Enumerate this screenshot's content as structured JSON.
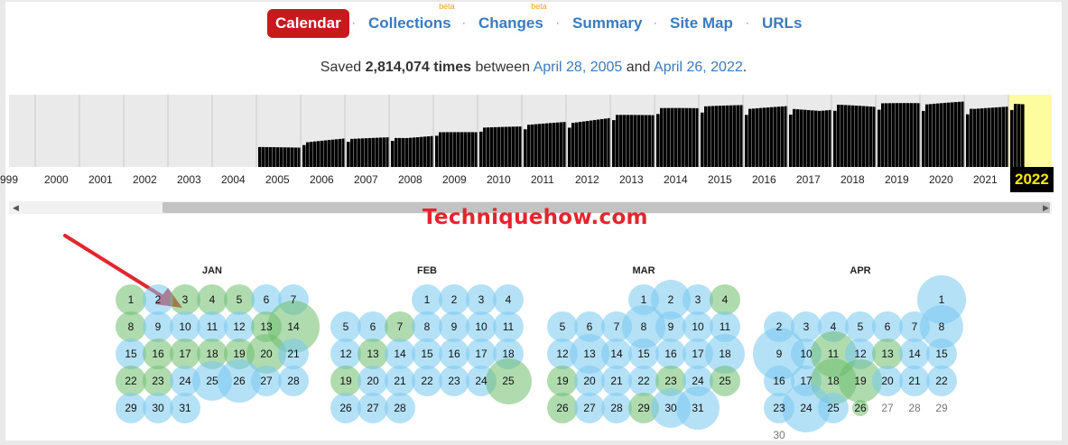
{
  "nav": {
    "items": [
      {
        "label": "Calendar",
        "active": true
      },
      {
        "label": "Collections",
        "sup": "beta"
      },
      {
        "label": "Changes",
        "sup": "beta"
      },
      {
        "label": "Summary"
      },
      {
        "label": "Site Map"
      },
      {
        "label": "URLs"
      }
    ],
    "separator": "·"
  },
  "saved": {
    "prefix": "Saved",
    "count": "2,814,074 times",
    "between": "between",
    "start": "April 28, 2005",
    "and": "and",
    "end": "April 26, 2022",
    "period": "."
  },
  "timeline": {
    "years": [
      "999",
      "2000",
      "2001",
      "2002",
      "2003",
      "2004",
      "2005",
      "2006",
      "2007",
      "2008",
      "2009",
      "2010",
      "2011",
      "2012",
      "2013",
      "2014",
      "2015",
      "2016",
      "2017",
      "2018",
      "2019",
      "2020",
      "2021",
      "2022"
    ],
    "selected_year": "2022",
    "highlight_color": "#fdfda0",
    "bar_color": "#000000",
    "relative_activity": [
      0,
      0,
      0,
      0,
      0,
      0,
      0.28,
      0.4,
      0.42,
      0.47,
      0.52,
      0.57,
      0.63,
      0.72,
      0.8,
      0.84,
      0.86,
      0.87,
      0.88,
      0.88,
      0.89,
      0.92,
      0.9,
      0.92
    ]
  },
  "watermark": "Techniquehow.com",
  "calendar": {
    "months": [
      {
        "name": "JAN",
        "first_weekday": 0,
        "days": 31,
        "green": [
          1,
          3,
          4,
          5,
          8,
          13,
          14,
          16,
          17,
          18,
          19,
          20,
          22,
          23
        ],
        "big": {
          "14": 1.7,
          "25": 1.3,
          "26": 1.4,
          "20": 1.3
        },
        "plain": []
      },
      {
        "name": "FEB",
        "first_weekday": 3,
        "days": 28,
        "green": [
          7,
          13,
          19,
          25
        ],
        "big": {
          "25": 1.5
        },
        "plain": []
      },
      {
        "name": "MAR",
        "first_weekday": 3,
        "days": 31,
        "green": [
          4,
          19,
          23,
          25,
          26,
          29
        ],
        "big": {
          "2": 1.3,
          "8": 1.4,
          "13": 1.3,
          "30": 1.3,
          "31": 1.4,
          "18": 1.3
        },
        "plain": []
      },
      {
        "name": "APR",
        "first_weekday": 6,
        "days": 30,
        "green": [
          11,
          13,
          18,
          19,
          26
        ],
        "big": {
          "1": 1.6,
          "9": 1.7,
          "8": 1.4,
          "11": 1.5,
          "18": 1.5,
          "24": 1.6,
          "19": 1.4
        },
        "plain": [
          27,
          28,
          29,
          30
        ],
        "small": [
          26
        ]
      }
    ]
  },
  "colors": {
    "accent": "#c8191e",
    "link": "#3a7bbf",
    "bubble_blue": "#78c8f0",
    "bubble_green": "#6ebe6e",
    "arrow": "#e3262e"
  }
}
